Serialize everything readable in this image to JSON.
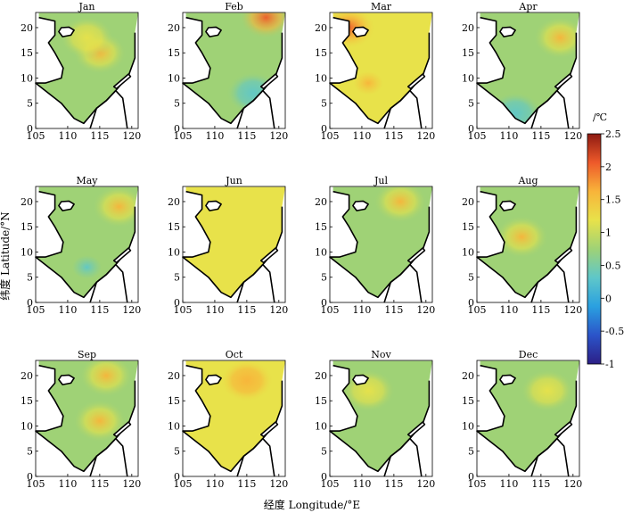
{
  "figure": {
    "xlabel": "经度 Longitude/°E",
    "ylabel": "纬度 Latitude/°N"
  },
  "colorbar": {
    "unit_label": "/℃",
    "range": [
      -1,
      2.5
    ],
    "ticks": [
      "2.5",
      "2",
      "1.5",
      "1",
      "0.5",
      "0",
      "-0.5",
      "-1"
    ],
    "colormap": [
      "#2c1f86",
      "#2b54c9",
      "#2aa0e0",
      "#5fc7c9",
      "#9fd276",
      "#e8e24a",
      "#f8b43a",
      "#ee5a2a",
      "#8e1a12"
    ]
  },
  "map_axes": {
    "x_ticks": [
      "105",
      "110",
      "115",
      "120"
    ],
    "y_ticks": [
      "0",
      "5",
      "10",
      "15",
      "20"
    ],
    "lon_range": [
      105,
      121
    ],
    "lat_range": [
      0,
      23
    ]
  },
  "chart_data": {
    "type": "heatmap",
    "panels": [
      {
        "month": "Jan",
        "base": 0.9,
        "hotspots": [
          {
            "lon": 115,
            "lat": 15,
            "value": 1.6
          },
          {
            "lon": 113,
            "lat": 18,
            "value": 1.4
          }
        ]
      },
      {
        "month": "Feb",
        "base": 0.8,
        "hotspots": [
          {
            "lon": 118,
            "lat": 22,
            "value": 2.2
          },
          {
            "lon": 116,
            "lat": 7,
            "value": 0.2
          }
        ]
      },
      {
        "month": "Mar",
        "base": 1.1,
        "hotspots": [
          {
            "lon": 108,
            "lat": 20,
            "value": 2.2
          },
          {
            "lon": 111,
            "lat": 9,
            "value": 1.6
          }
        ]
      },
      {
        "month": "Apr",
        "base": 0.8,
        "hotspots": [
          {
            "lon": 118,
            "lat": 18,
            "value": 1.7
          },
          {
            "lon": 111,
            "lat": 3,
            "value": 0.1
          }
        ]
      },
      {
        "month": "May",
        "base": 0.8,
        "hotspots": [
          {
            "lon": 118,
            "lat": 19,
            "value": 1.8
          },
          {
            "lon": 113,
            "lat": 7,
            "value": 0.3
          }
        ]
      },
      {
        "month": "Jun",
        "base": 1.0,
        "hotspots": [
          {
            "lon": 110,
            "lat": 12,
            "value": 1.3
          }
        ]
      },
      {
        "month": "Jul",
        "base": 0.9,
        "hotspots": [
          {
            "lon": 116,
            "lat": 20,
            "value": 1.8
          }
        ]
      },
      {
        "month": "Aug",
        "base": 0.9,
        "hotspots": [
          {
            "lon": 112,
            "lat": 13,
            "value": 1.5
          }
        ]
      },
      {
        "month": "Sep",
        "base": 0.9,
        "hotspots": [
          {
            "lon": 116,
            "lat": 20,
            "value": 1.7
          },
          {
            "lon": 115,
            "lat": 11,
            "value": 1.5
          }
        ]
      },
      {
        "month": "Oct",
        "base": 1.1,
        "hotspots": [
          {
            "lon": 115,
            "lat": 19,
            "value": 1.8
          }
        ]
      },
      {
        "month": "Nov",
        "base": 0.8,
        "hotspots": [
          {
            "lon": 111,
            "lat": 17,
            "value": 1.4
          }
        ]
      },
      {
        "month": "Dec",
        "base": 0.9,
        "hotspots": [
          {
            "lon": 116,
            "lat": 17,
            "value": 1.4
          }
        ]
      }
    ]
  }
}
